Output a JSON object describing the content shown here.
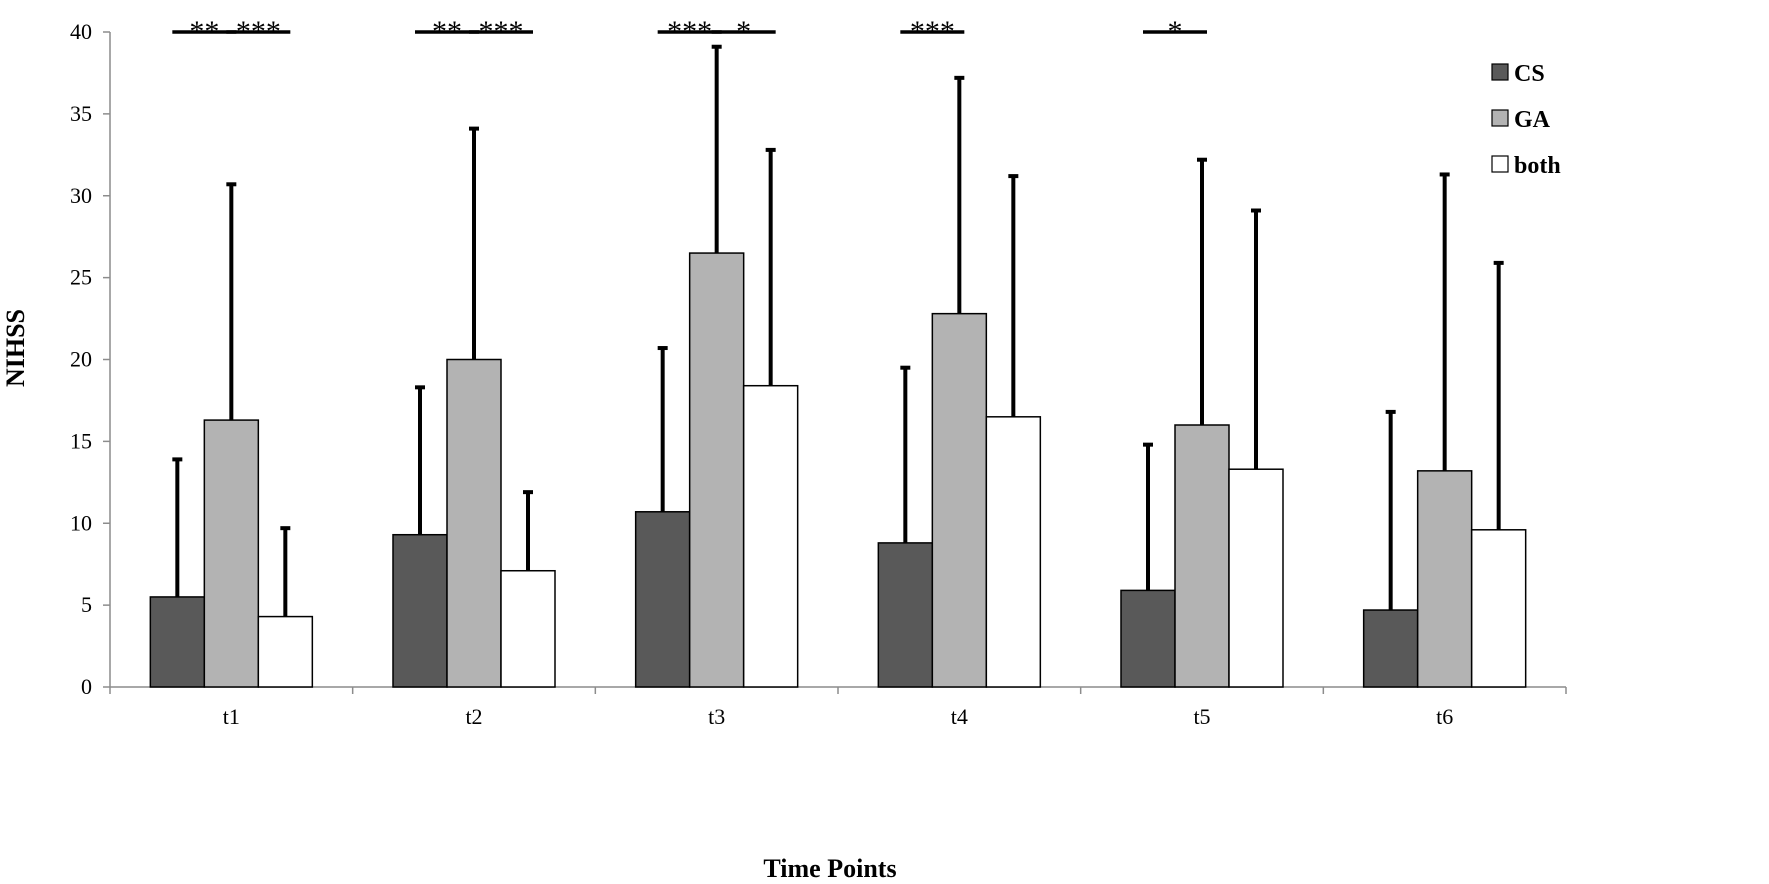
{
  "chart_data": {
    "type": "bar",
    "title": "",
    "xlabel": "Time Points",
    "ylabel": "NIHSS",
    "ylim": [
      0,
      40
    ],
    "yticks": [
      0,
      5,
      10,
      15,
      20,
      25,
      30,
      35,
      40
    ],
    "grid": false,
    "legend_position": "top-right",
    "categories": [
      "t1",
      "t2",
      "t3",
      "t4",
      "t5",
      "t6"
    ],
    "series": [
      {
        "name": "CS",
        "color": "#595959",
        "values": [
          5.5,
          9.3,
          10.7,
          8.8,
          5.9,
          4.7
        ],
        "error_upper": [
          13.9,
          18.3,
          20.7,
          19.5,
          14.8,
          16.8
        ]
      },
      {
        "name": "GA",
        "color": "#b3b3b3",
        "values": [
          16.3,
          20.0,
          26.5,
          22.8,
          16.0,
          13.2
        ],
        "error_upper": [
          30.7,
          34.1,
          39.1,
          37.2,
          32.2,
          31.3
        ]
      },
      {
        "name": "both",
        "color": "#ffffff",
        "values": [
          4.3,
          7.1,
          18.4,
          16.5,
          13.3,
          9.6
        ],
        "error_upper": [
          9.7,
          11.9,
          32.8,
          31.2,
          29.1,
          25.9
        ]
      }
    ],
    "significance": [
      {
        "category": "t1",
        "between": [
          "CS",
          "GA"
        ],
        "label": "**"
      },
      {
        "category": "t1",
        "between": [
          "GA",
          "both"
        ],
        "label": "***"
      },
      {
        "category": "t2",
        "between": [
          "CS",
          "GA"
        ],
        "label": "**"
      },
      {
        "category": "t2",
        "between": [
          "GA",
          "both"
        ],
        "label": "***"
      },
      {
        "category": "t3",
        "between": [
          "CS",
          "GA"
        ],
        "label": "***"
      },
      {
        "category": "t3",
        "between": [
          "GA",
          "both"
        ],
        "label": "*"
      },
      {
        "category": "t4",
        "between": [
          "CS",
          "GA"
        ],
        "label": "***"
      },
      {
        "category": "t5",
        "between": [
          "CS",
          "GA"
        ],
        "label": "*"
      }
    ]
  }
}
